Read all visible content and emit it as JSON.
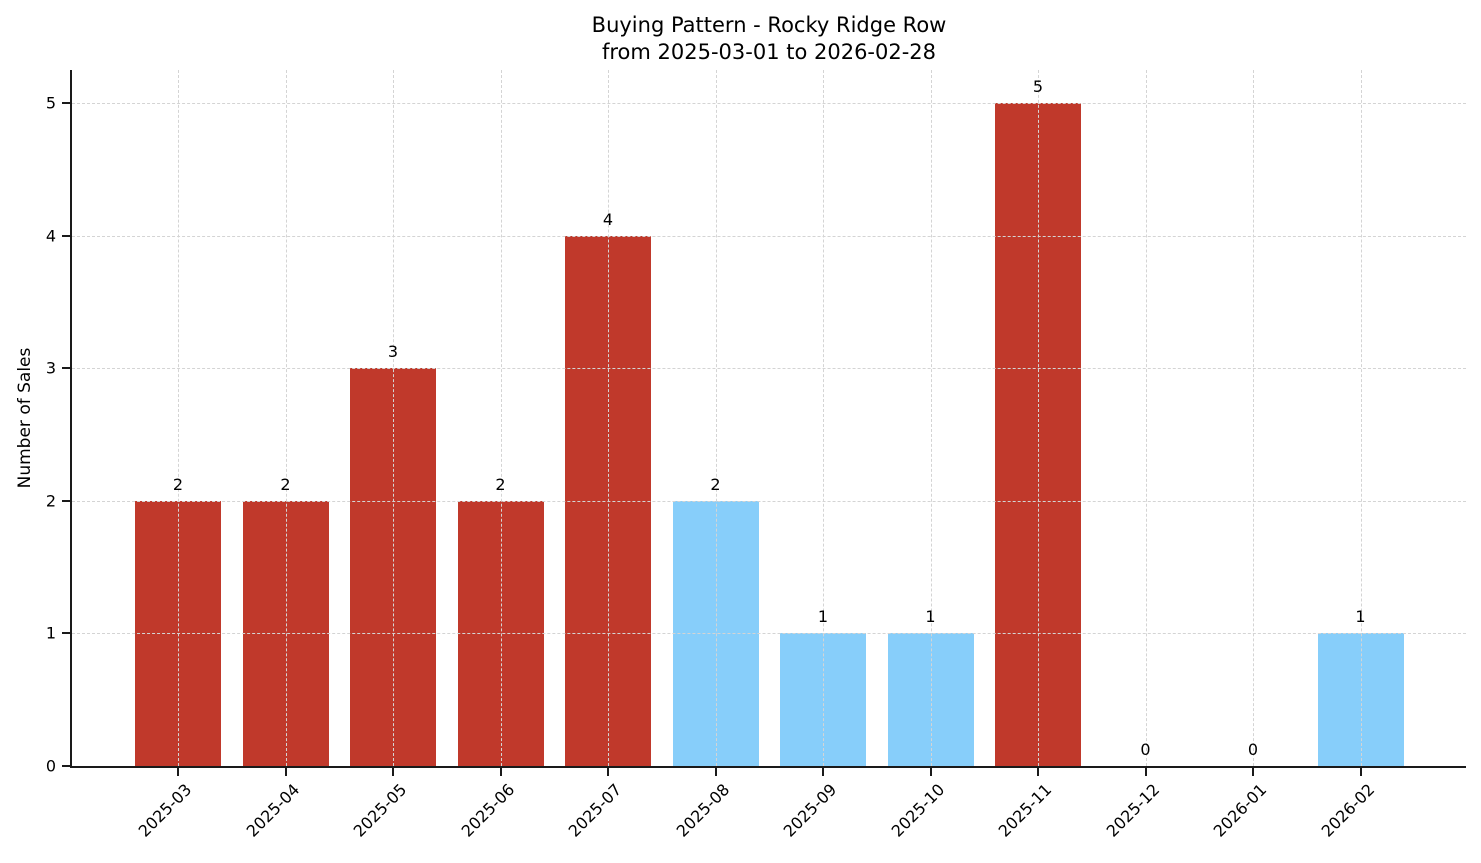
{
  "figure_title": {
    "line1": "Buying Pattern - Rocky Ridge Row",
    "line2": "from 2025-03-01 to 2026-02-28"
  },
  "chart_data": {
    "type": "bar",
    "title": "Buying Pattern - Rocky Ridge Row",
    "subtitle": "from 2025-03-01 to 2026-02-28",
    "categories": [
      "2025-03",
      "2025-04",
      "2025-05",
      "2025-06",
      "2025-07",
      "2025-08",
      "2025-09",
      "2025-10",
      "2025-11",
      "2025-12",
      "2026-01",
      "2026-02"
    ],
    "values": [
      2,
      2,
      3,
      2,
      4,
      2,
      1,
      1,
      5,
      0,
      0,
      1
    ],
    "value_labels": [
      "2",
      "2",
      "3",
      "2",
      "4",
      "2",
      "1",
      "1",
      "5",
      "0",
      "0",
      "1"
    ],
    "bar_colors": [
      "#c0392b",
      "#c0392b",
      "#c0392b",
      "#c0392b",
      "#c0392b",
      "#87cefa",
      "#87cefa",
      "#87cefa",
      "#c0392b",
      "#87cefa",
      "#87cefa",
      "#87cefa"
    ],
    "xlabel": "",
    "ylabel": "Number of Sales",
    "yticks": [
      0,
      1,
      2,
      3,
      4,
      5
    ],
    "ytick_labels": [
      "0",
      "1",
      "2",
      "3",
      "4",
      "5"
    ],
    "ylim": [
      0,
      5.25
    ],
    "grid": {
      "enabled": true,
      "style": "dashed",
      "axes": "both",
      "color": "#d4d4d4"
    },
    "legend": "none",
    "colors": {
      "bar_red": "#c0392b",
      "bar_blue": "#87cefa",
      "background": "#ffffff",
      "axis": "#1a1a1a",
      "text": "#000000"
    }
  }
}
